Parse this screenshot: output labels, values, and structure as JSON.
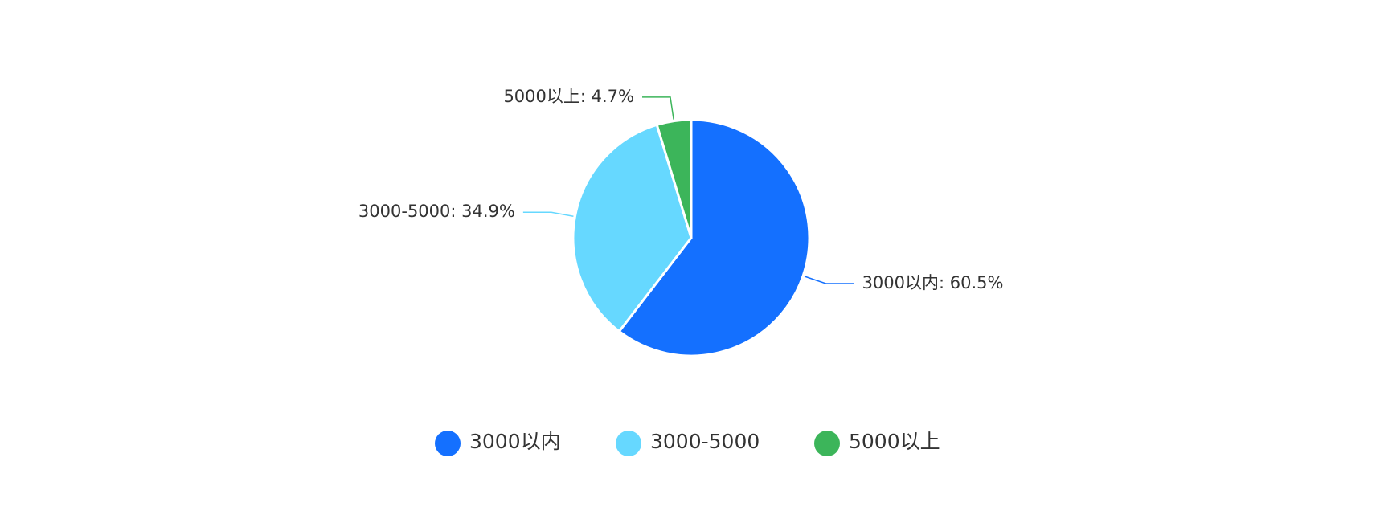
{
  "chart_data": {
    "type": "pie",
    "categories": [
      "3000以内",
      "3000-5000",
      "5000以上"
    ],
    "values": [
      60.5,
      34.9,
      4.7
    ],
    "value_labels": [
      "3000以内: 60.5%",
      "3000-5000: 34.9%",
      "5000以上: 4.7%"
    ],
    "colors": [
      "#1470ff",
      "#66d8ff",
      "#3cb55a"
    ],
    "legend": "bottom"
  }
}
